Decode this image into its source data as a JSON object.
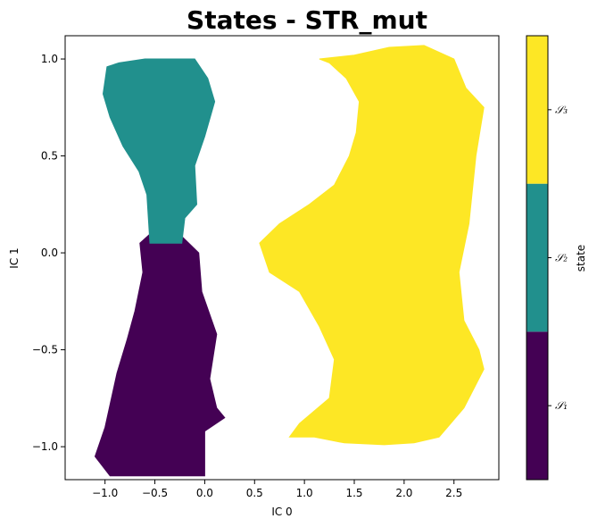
{
  "chart_data": {
    "type": "heatmap",
    "title": "States - STR_mut",
    "xlabel": "IC 0",
    "ylabel": "IC 1",
    "xlim": [
      -1.4,
      2.95
    ],
    "ylim": [
      -1.17,
      1.12
    ],
    "xticks": [
      -1.0,
      -0.5,
      0.0,
      0.5,
      1.0,
      1.5,
      2.0,
      2.5
    ],
    "xtick_labels": [
      "−1.0",
      "−0.5",
      "0.0",
      "0.5",
      "1.0",
      "1.5",
      "2.0",
      "2.5"
    ],
    "yticks": [
      1.0,
      0.5,
      0.0,
      -0.5,
      -1.0
    ],
    "ytick_labels": [
      "1.0",
      "0.5",
      "0.0",
      "−0.5",
      "−1.0"
    ],
    "colorbar": {
      "label": "state",
      "ticks": [
        "S1",
        "S2",
        "S3"
      ],
      "tick_labels": [
        "𝒮₁",
        "𝒮₂",
        "𝒮₃"
      ]
    },
    "series": [
      {
        "name": "S1",
        "color": "#440154",
        "region": [
          [
            -0.3,
            0.12
          ],
          [
            -0.06,
            0.0
          ],
          [
            -0.03,
            -0.2
          ],
          [
            0.12,
            -0.42
          ],
          [
            0.05,
            -0.65
          ],
          [
            0.12,
            -0.8
          ],
          [
            0.2,
            -0.85
          ],
          [
            0.0,
            -0.92
          ],
          [
            0.0,
            -1.15
          ],
          [
            -0.95,
            -1.15
          ],
          [
            -1.1,
            -1.05
          ],
          [
            -1.0,
            -0.9
          ],
          [
            -0.88,
            -0.62
          ],
          [
            -0.78,
            -0.45
          ],
          [
            -0.7,
            -0.3
          ],
          [
            -0.62,
            -0.1
          ],
          [
            -0.65,
            0.05
          ],
          [
            -0.5,
            0.12
          ]
        ]
      },
      {
        "name": "S2",
        "color": "#21908d",
        "region": [
          [
            -1.02,
            0.82
          ],
          [
            -0.98,
            0.96
          ],
          [
            -0.86,
            0.98
          ],
          [
            -0.6,
            1.0
          ],
          [
            -0.35,
            1.0
          ],
          [
            -0.1,
            1.0
          ],
          [
            0.03,
            0.9
          ],
          [
            0.1,
            0.78
          ],
          [
            0.0,
            0.6
          ],
          [
            -0.1,
            0.45
          ],
          [
            -0.08,
            0.25
          ],
          [
            -0.2,
            0.18
          ],
          [
            -0.23,
            0.05
          ],
          [
            -0.55,
            0.05
          ],
          [
            -0.58,
            0.3
          ],
          [
            -0.66,
            0.42
          ],
          [
            -0.82,
            0.55
          ],
          [
            -0.95,
            0.7
          ]
        ]
      },
      {
        "name": "S3",
        "color": "#fde725",
        "region": [
          [
            1.15,
            1.0
          ],
          [
            1.5,
            1.02
          ],
          [
            1.85,
            1.06
          ],
          [
            2.2,
            1.07
          ],
          [
            2.5,
            1.0
          ],
          [
            2.62,
            0.85
          ],
          [
            2.8,
            0.75
          ],
          [
            2.72,
            0.5
          ],
          [
            2.65,
            0.15
          ],
          [
            2.55,
            -0.1
          ],
          [
            2.6,
            -0.35
          ],
          [
            2.75,
            -0.5
          ],
          [
            2.8,
            -0.6
          ],
          [
            2.6,
            -0.8
          ],
          [
            2.35,
            -0.95
          ],
          [
            2.1,
            -0.98
          ],
          [
            1.8,
            -0.99
          ],
          [
            1.4,
            -0.98
          ],
          [
            1.1,
            -0.95
          ],
          [
            0.85,
            -0.95
          ],
          [
            0.95,
            -0.88
          ],
          [
            1.25,
            -0.75
          ],
          [
            1.3,
            -0.55
          ],
          [
            1.15,
            -0.38
          ],
          [
            0.95,
            -0.2
          ],
          [
            0.65,
            -0.1
          ],
          [
            0.55,
            0.05
          ],
          [
            0.75,
            0.15
          ],
          [
            1.05,
            0.25
          ],
          [
            1.3,
            0.35
          ],
          [
            1.45,
            0.5
          ],
          [
            1.52,
            0.62
          ],
          [
            1.55,
            0.78
          ],
          [
            1.42,
            0.9
          ],
          [
            1.25,
            0.98
          ]
        ]
      }
    ]
  }
}
